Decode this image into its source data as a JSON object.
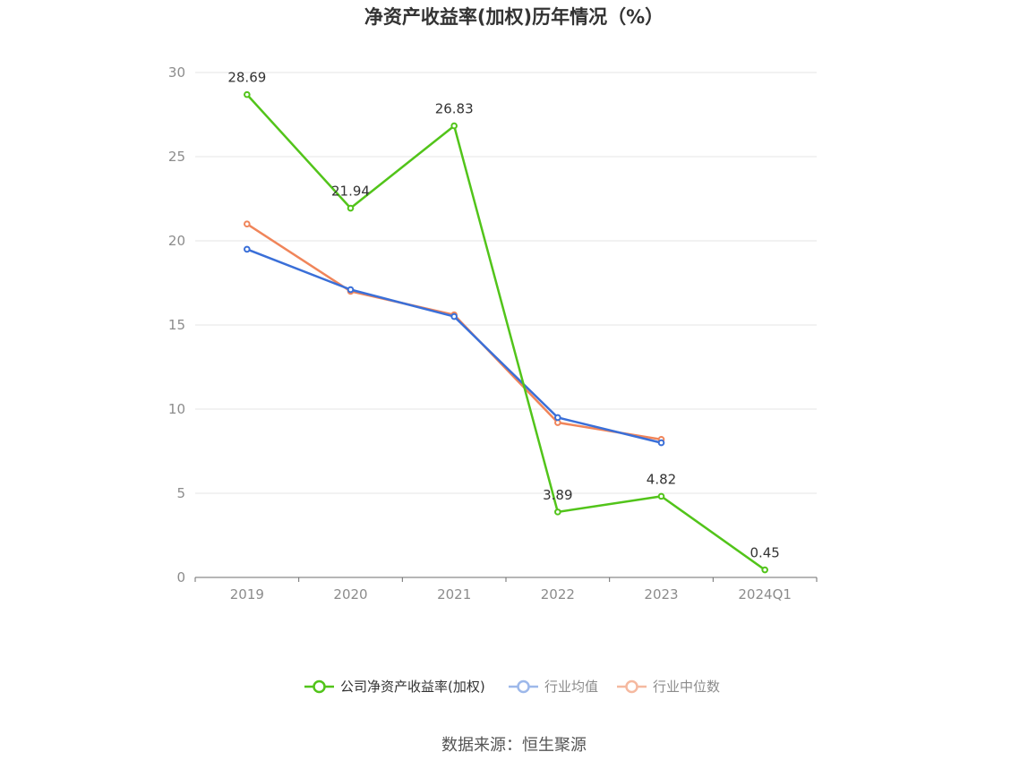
{
  "chart_data": {
    "type": "line",
    "title": "净资产收益率(加权)历年情况（%）",
    "categories": [
      "2019",
      "2020",
      "2021",
      "2022",
      "2023",
      "2024Q1"
    ],
    "ylim": [
      0,
      30
    ],
    "yticks": [
      "0",
      "5",
      "10",
      "15",
      "20",
      "25",
      "30"
    ],
    "grid": true,
    "legend_position": "bottom",
    "series": [
      {
        "name": "公司净资产收益率(加权)",
        "color": "#52c41a",
        "values": [
          28.69,
          21.94,
          26.83,
          3.89,
          4.82,
          0.45
        ],
        "labels": [
          "28.69",
          "21.94",
          "26.83",
          "3.89",
          "4.82",
          "0.45"
        ]
      },
      {
        "name": "行业均值",
        "color": "#3a6fd8",
        "values": [
          19.5,
          17.1,
          15.5,
          9.5,
          8.0,
          null
        ]
      },
      {
        "name": "行业中位数",
        "color": "#f0855a",
        "values": [
          21.0,
          17.0,
          15.6,
          9.2,
          8.2,
          null
        ]
      }
    ],
    "source": "数据来源：恒生聚源"
  }
}
